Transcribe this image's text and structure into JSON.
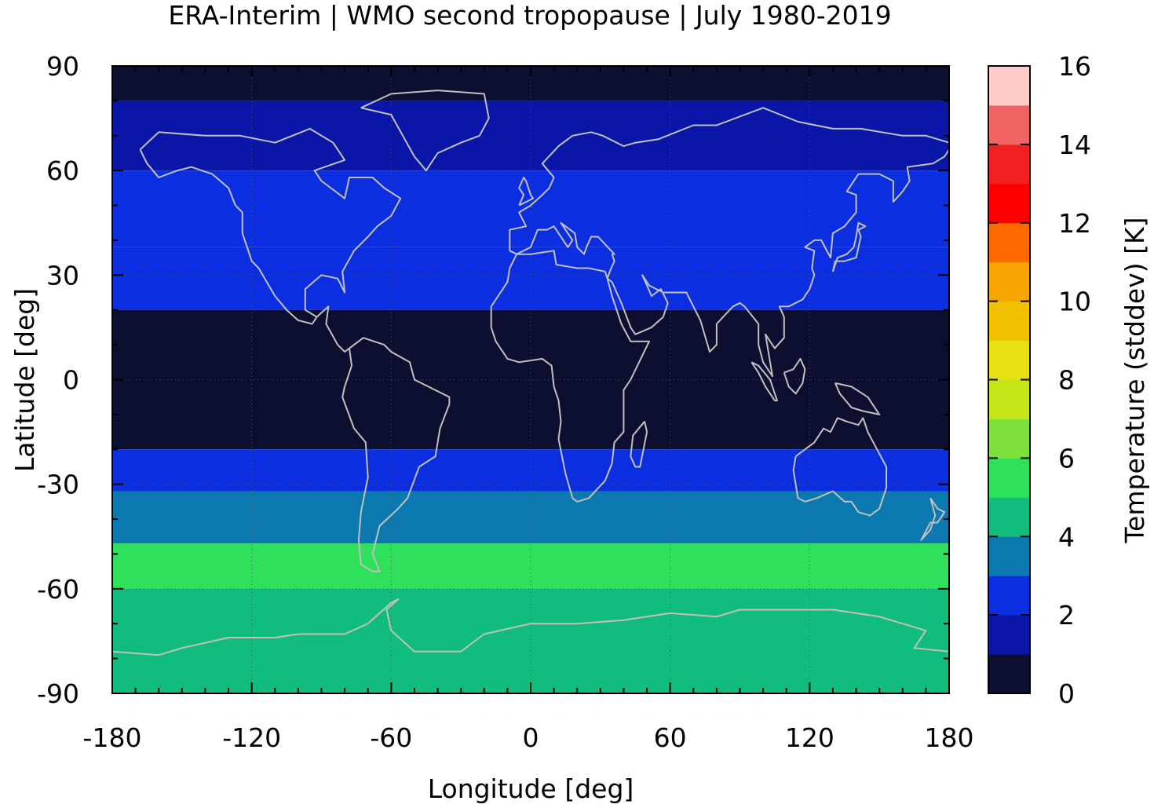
{
  "chart_data": {
    "type": "heatmap",
    "title": "ERA-Interim | WMO second tropopause | July 1980-2019",
    "xlabel": "Longitude [deg]",
    "ylabel": "Latitude [deg]",
    "xlim": [
      -180,
      180
    ],
    "ylim": [
      -90,
      90
    ],
    "x_ticks": [
      -180,
      -120,
      -60,
      0,
      60,
      120,
      180
    ],
    "y_ticks": [
      90,
      60,
      30,
      0,
      -30,
      -60,
      -90
    ],
    "x_tick_labels": [
      "-180",
      "-120",
      "-60",
      "0",
      "60",
      "120",
      "180"
    ],
    "y_tick_labels": [
      "90",
      "60",
      "30",
      "0",
      "-30",
      "-60",
      "-90"
    ],
    "grid": true,
    "colorbar": {
      "label": "Temperature (stddev) [K]",
      "range": [
        0,
        16
      ],
      "ticks": [
        0,
        2,
        4,
        6,
        8,
        10,
        12,
        14,
        16
      ],
      "tick_labels": [
        "0",
        "2",
        "4",
        "6",
        "8",
        "10",
        "12",
        "14",
        "16"
      ],
      "colors": [
        "#0c0f30",
        "#0a16a8",
        "#0b2ee0",
        "#0b79b0",
        "#10bd7c",
        "#2ee05a",
        "#7ee03a",
        "#c6e617",
        "#e8e010",
        "#f2c200",
        "#f7a500",
        "#ff6a00",
        "#ff0000",
        "#f02020",
        "#f06464",
        "#ffcaca"
      ]
    },
    "zonal_structure": [
      {
        "lat": [
          80,
          90
        ],
        "value": 0.5
      },
      {
        "lat": [
          60,
          80
        ],
        "value": 1.5
      },
      {
        "lat": [
          38,
          60
        ],
        "value": 2.5
      },
      {
        "lat": [
          20,
          38
        ],
        "value": 2.2
      },
      {
        "lat": [
          -20,
          20
        ],
        "value": 0.5
      },
      {
        "lat": [
          -32,
          -20
        ],
        "value": 2.5
      },
      {
        "lat": [
          -47,
          -32
        ],
        "value": 3.5
      },
      {
        "lat": [
          -60,
          -47
        ],
        "value": 5.5
      },
      {
        "lat": [
          -90,
          -60
        ],
        "value": 4.5
      }
    ],
    "overlay": "coastlines"
  },
  "colors": {
    "coastline": "#c0c0c0",
    "grid": "#555555",
    "frame": "#000000"
  }
}
